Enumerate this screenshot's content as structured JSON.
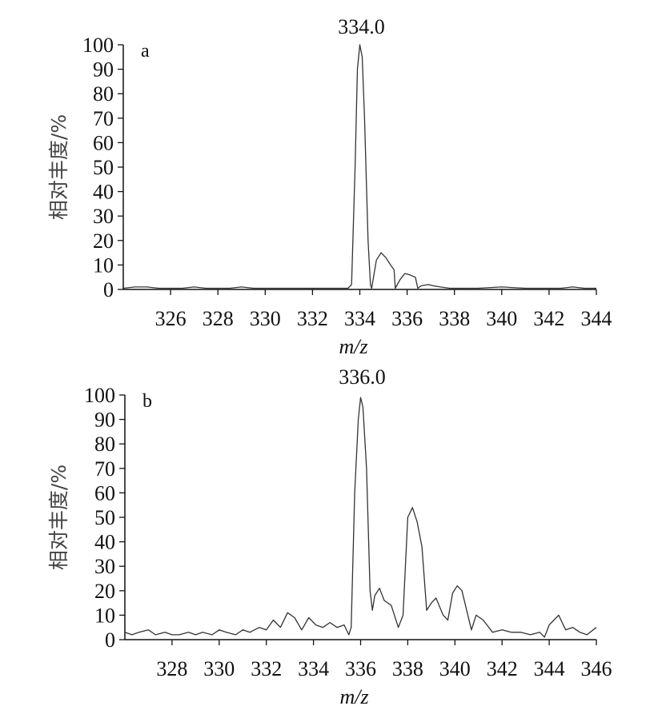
{
  "chart_data": [
    {
      "type": "line",
      "panel_label": "a",
      "annotation": "334.0",
      "xlabel": "m/z",
      "ylabel": "相对丰度/%",
      "xlim": [
        324,
        344
      ],
      "ylim": [
        0,
        100
      ],
      "xticks": [
        326,
        328,
        330,
        332,
        334,
        336,
        338,
        340,
        342,
        344
      ],
      "yticks": [
        0,
        10,
        20,
        30,
        40,
        50,
        60,
        70,
        80,
        90,
        100
      ],
      "grid": false,
      "series": [
        {
          "x": [
            324.0,
            324.5,
            325.0,
            325.5,
            326.0,
            326.5,
            327.0,
            327.5,
            328.0,
            328.5,
            329.0,
            329.5,
            330.0,
            330.5,
            331.0,
            332.0,
            333.0,
            333.5,
            333.65,
            333.8,
            333.9,
            334.0,
            334.1,
            334.2,
            334.35,
            334.45,
            334.5,
            334.7,
            334.9,
            335.1,
            335.3,
            335.45,
            335.5,
            335.7,
            335.9,
            336.1,
            336.35,
            336.45,
            336.6,
            336.9,
            337.1,
            337.4,
            337.8,
            338.5,
            339.0,
            340.0,
            341.0,
            342.0,
            342.5,
            343.0,
            343.5,
            344.0
          ],
          "y": [
            0.5,
            1,
            1,
            0.5,
            0.5,
            0.5,
            1,
            0.5,
            0.5,
            0.5,
            1,
            0.5,
            0.5,
            0.5,
            0.5,
            0.5,
            0.5,
            0.5,
            2,
            50,
            90,
            100,
            95,
            70,
            20,
            2,
            0.5,
            12,
            15,
            13,
            10,
            8,
            0.5,
            4,
            6.5,
            6,
            5,
            0.5,
            1.5,
            2,
            1.5,
            1,
            0.5,
            0.5,
            0.5,
            1,
            0.5,
            0.5,
            0.5,
            1,
            0.5,
            0.5
          ]
        }
      ]
    },
    {
      "type": "line",
      "panel_label": "b",
      "annotation": "336.0",
      "xlabel": "m/z",
      "ylabel": "相对丰度/%",
      "xlim": [
        326,
        346
      ],
      "ylim": [
        0,
        100
      ],
      "xticks": [
        328,
        330,
        332,
        334,
        336,
        338,
        340,
        342,
        344,
        346
      ],
      "yticks": [
        0,
        10,
        20,
        30,
        40,
        50,
        60,
        70,
        80,
        90,
        100
      ],
      "grid": false,
      "series": [
        {
          "x": [
            326.0,
            326.3,
            326.6,
            327.0,
            327.3,
            327.7,
            328.0,
            328.3,
            328.7,
            329.0,
            329.3,
            329.7,
            330.0,
            330.3,
            330.7,
            331.0,
            331.3,
            331.7,
            332.0,
            332.3,
            332.6,
            332.9,
            333.2,
            333.5,
            333.8,
            334.1,
            334.4,
            334.7,
            335.0,
            335.3,
            335.5,
            335.6,
            335.75,
            335.9,
            336.0,
            336.1,
            336.25,
            336.4,
            336.5,
            336.6,
            336.8,
            337.0,
            337.3,
            337.6,
            337.8,
            338.0,
            338.2,
            338.4,
            338.6,
            338.8,
            339.0,
            339.2,
            339.5,
            339.7,
            339.9,
            340.1,
            340.3,
            340.5,
            340.7,
            340.9,
            341.2,
            341.6,
            342.0,
            342.4,
            342.8,
            343.2,
            343.6,
            343.8,
            344.0,
            344.2,
            344.4,
            344.7,
            345.0,
            345.3,
            345.6,
            346.0
          ],
          "y": [
            3,
            2,
            3,
            4,
            2,
            3,
            2,
            2,
            3,
            2,
            3,
            2,
            4,
            3,
            2,
            4,
            3,
            5,
            4,
            8,
            5,
            11,
            9,
            4,
            9,
            6,
            5,
            7,
            5,
            6,
            2,
            5,
            60,
            90,
            99,
            95,
            70,
            20,
            12,
            18,
            21,
            16,
            14,
            5,
            10,
            50,
            54,
            48,
            38,
            12,
            15,
            17,
            10,
            8,
            19,
            22,
            20,
            12,
            4,
            10,
            8,
            3,
            4,
            3,
            3,
            2,
            3,
            1,
            6,
            8,
            10,
            4,
            5,
            3,
            2,
            5
          ]
        }
      ]
    }
  ]
}
